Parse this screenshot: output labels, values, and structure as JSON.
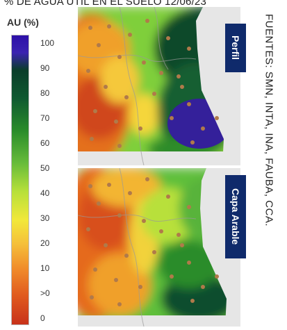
{
  "title": "% DE AGUA ÚTIL EN EL SUELO 12/06/23",
  "legend": {
    "title": "AU (%)",
    "ticks": [
      "100",
      "90",
      "80",
      "70",
      "60",
      "50",
      "40",
      "30",
      "20",
      "10",
      ">0",
      "0"
    ]
  },
  "panels": [
    {
      "label": "Perfil"
    },
    {
      "label": "Capa Arable"
    }
  ],
  "sources": "FUENTES: SMN, INTA, INA, FAUBA, CCA."
}
